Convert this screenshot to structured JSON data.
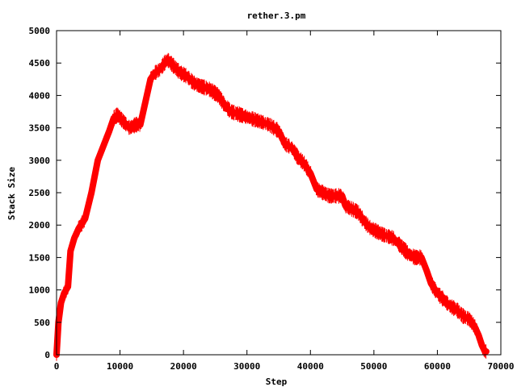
{
  "chart_data": {
    "type": "line",
    "title": "rether.3.pm",
    "xlabel": "Step",
    "ylabel": "Stack Size",
    "xlim": [
      0,
      70000
    ],
    "ylim": [
      0,
      5000
    ],
    "x_ticks": [
      "0",
      "10000",
      "20000",
      "30000",
      "40000",
      "50000",
      "60000",
      "70000"
    ],
    "y_ticks": [
      "0",
      "500",
      "1000",
      "1500",
      "2000",
      "2500",
      "3000",
      "3500",
      "4000",
      "4500",
      "5000"
    ],
    "grid": false,
    "legend": "none",
    "series_color": "#ff0000",
    "series": [
      {
        "x": [
          0,
          300,
          700,
          1200,
          1800,
          2200,
          2800,
          3500,
          4500,
          5500,
          6500,
          7500,
          8300,
          9000,
          9600,
          10500,
          11500,
          12500,
          13200,
          14000,
          14800,
          15500,
          16300,
          17000,
          17500,
          18500,
          19500,
          20500,
          21500,
          22500,
          24000,
          25500,
          26500,
          27500,
          29000,
          30500,
          32000,
          33500,
          35000,
          36000,
          37000,
          38000,
          39000,
          40000,
          41000,
          42000,
          43000,
          44000,
          45000,
          45500,
          46500,
          47500,
          48500,
          49500,
          50500,
          51500,
          53000,
          54500,
          55500,
          56500,
          57500,
          58300,
          59000,
          60000,
          61000,
          62000,
          63000,
          64000,
          65000,
          65800,
          66500,
          67000,
          67500,
          67700
        ],
        "y": [
          0,
          500,
          800,
          950,
          1050,
          1600,
          1800,
          1950,
          2100,
          2500,
          3000,
          3250,
          3450,
          3650,
          3700,
          3600,
          3500,
          3550,
          3550,
          3900,
          4250,
          4350,
          4400,
          4500,
          4550,
          4450,
          4350,
          4300,
          4200,
          4150,
          4100,
          4000,
          3850,
          3750,
          3700,
          3650,
          3600,
          3550,
          3450,
          3250,
          3200,
          3050,
          2950,
          2800,
          2550,
          2500,
          2450,
          2450,
          2450,
          2300,
          2250,
          2200,
          2050,
          1950,
          1900,
          1850,
          1800,
          1650,
          1550,
          1500,
          1500,
          1300,
          1100,
          950,
          850,
          750,
          700,
          600,
          550,
          450,
          300,
          150,
          50,
          50
        ]
      }
    ]
  }
}
